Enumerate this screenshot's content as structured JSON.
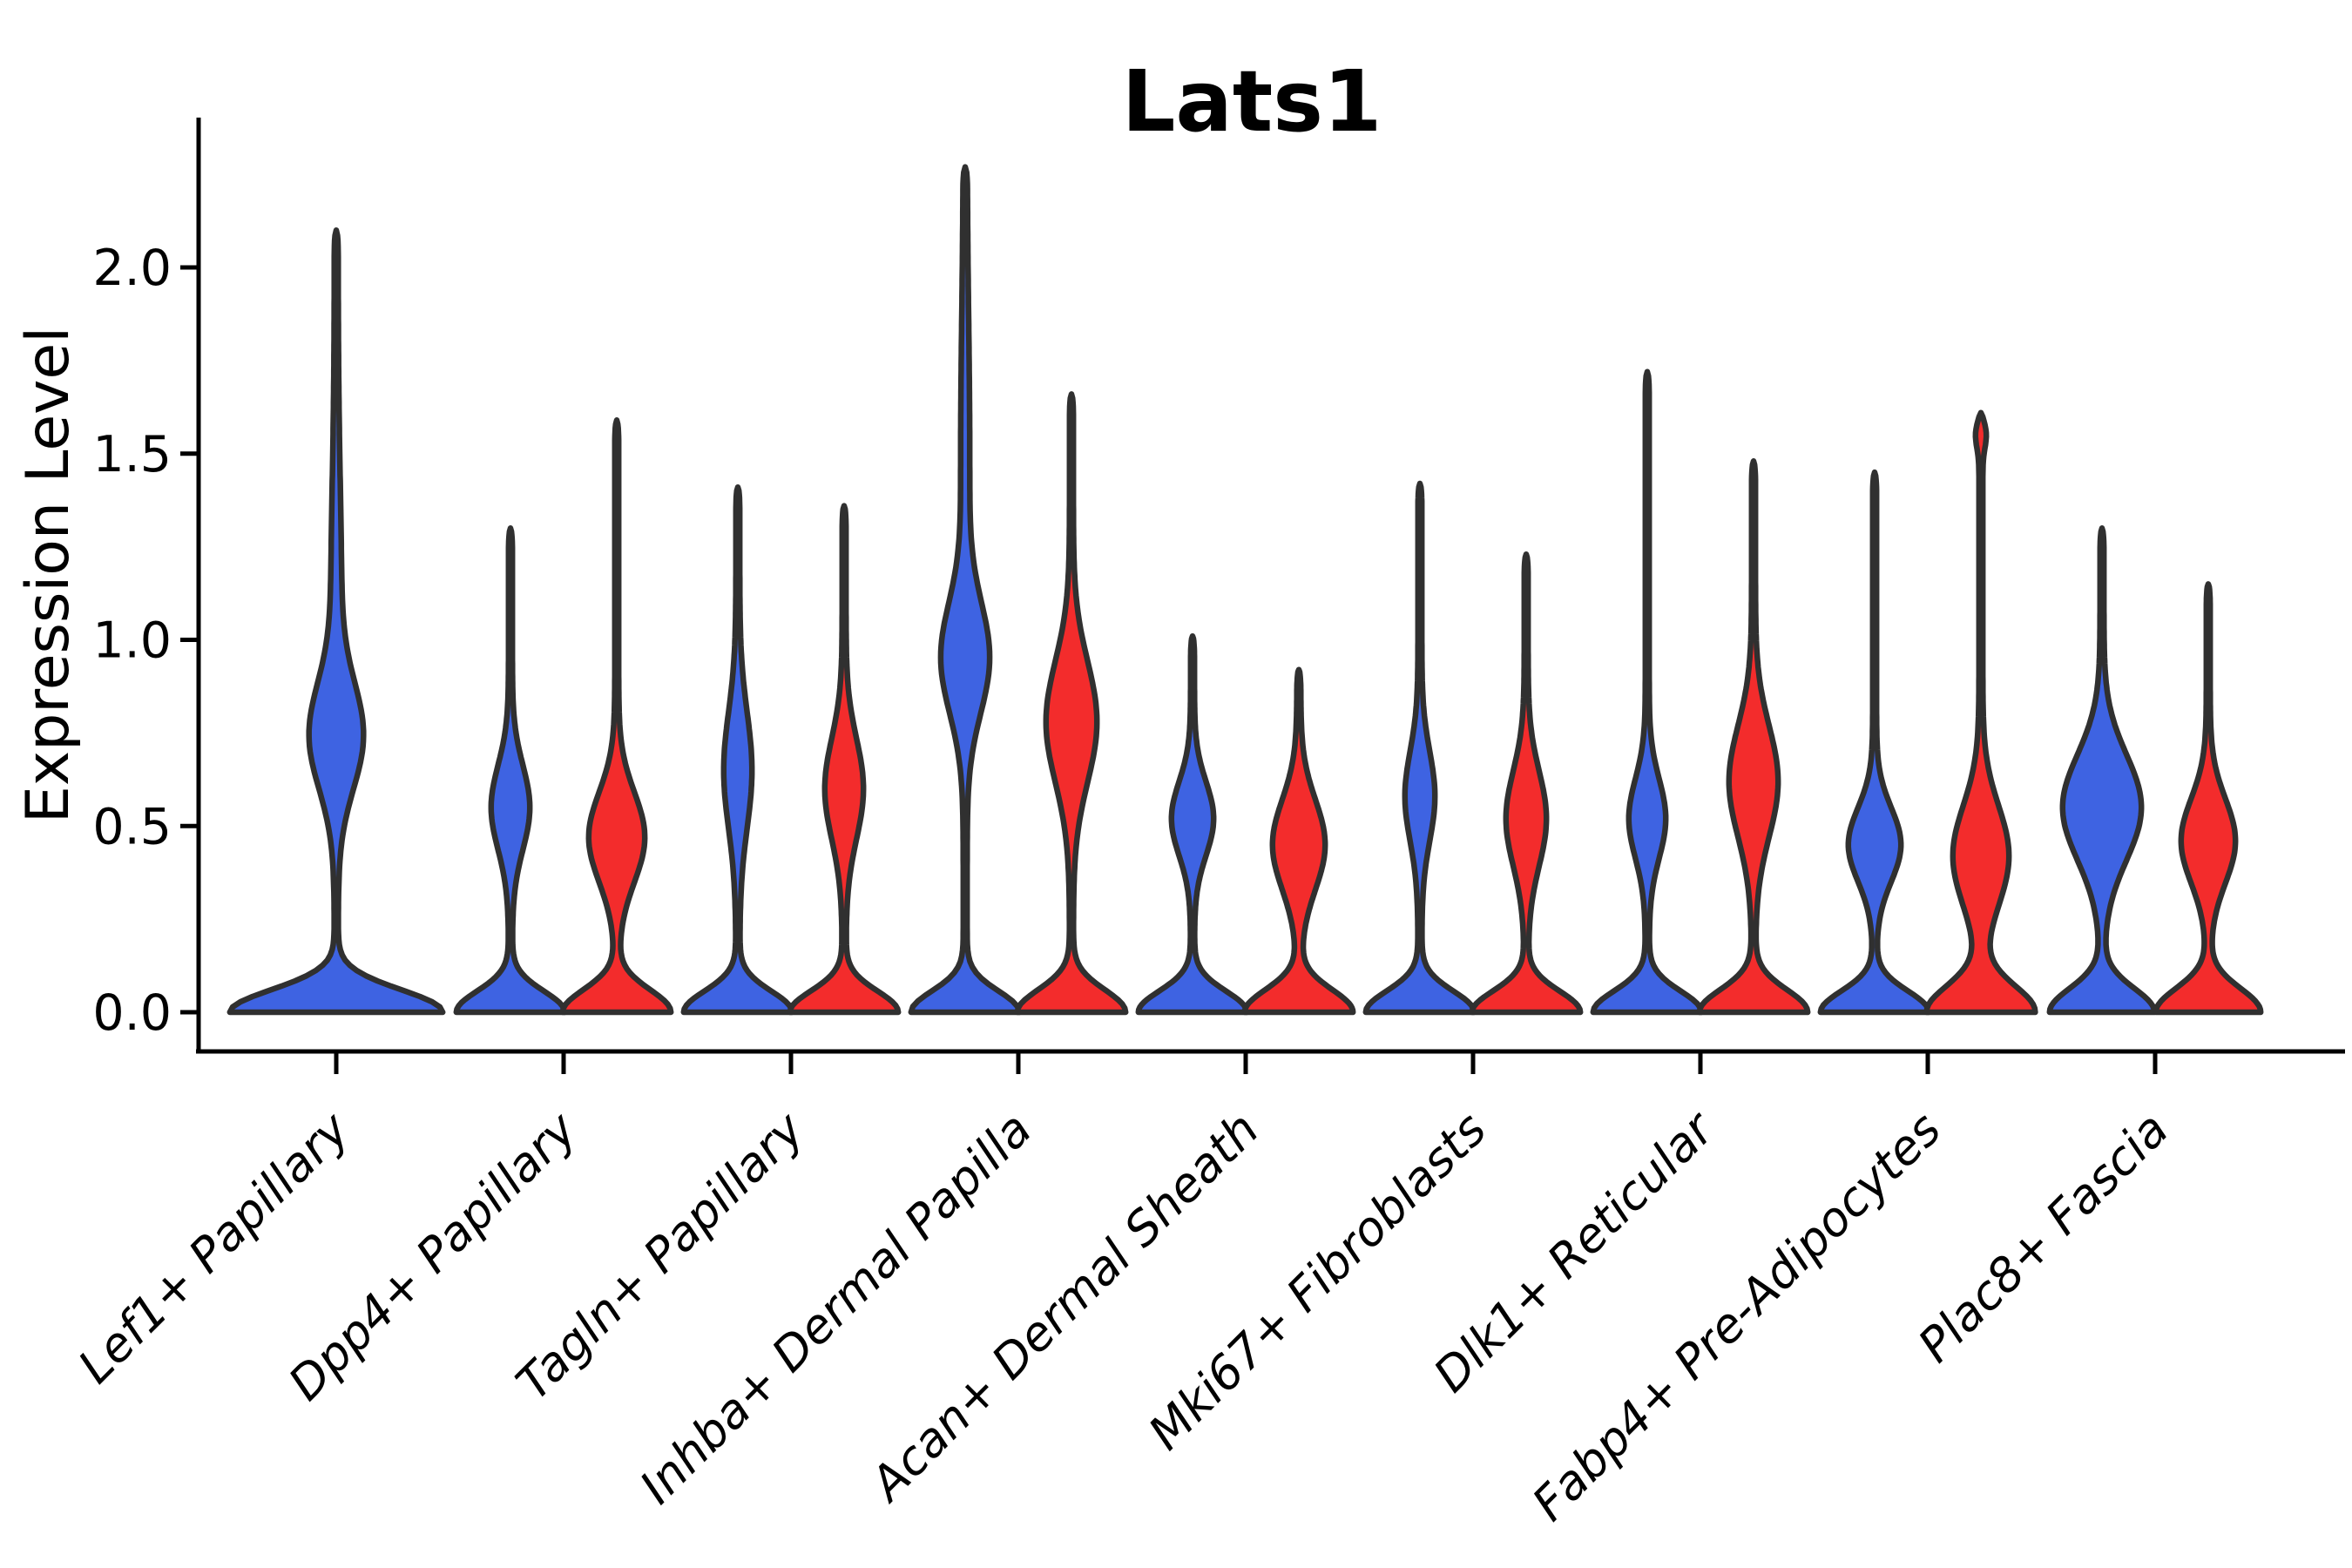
{
  "title": "Lats1",
  "axes": {
    "y_label": "Expression Level",
    "y_ticks": [
      "0.0",
      "0.5",
      "1.0",
      "1.5",
      "2.0"
    ],
    "y_tick_values": [
      0,
      0.5,
      1.0,
      1.5,
      2.0
    ]
  },
  "colors": {
    "blue": "#3E63E2",
    "red": "#F32C2C",
    "outline": "#303030",
    "axis": "#000000"
  },
  "chart_data": {
    "type": "violin",
    "title": "Lats1",
    "xlabel": "",
    "ylabel": "Expression Level",
    "ylim": [
      0,
      2.42
    ],
    "y_ticks": [
      0,
      0.5,
      1.0,
      1.5,
      2.0
    ],
    "grid": false,
    "legend": "none",
    "categories": [
      "Lef1+ Papillary",
      "Dpp4+ Papillary",
      "Tagln+ Papillary",
      "Inhba+ Dermal Papilla",
      "Acan+ Dermal Sheath",
      "Mki67+ Fibroblasts",
      "Dlk1+ Reticular",
      "Fabp4+ Pre-Adipocytes",
      "Plac8+ Fascia"
    ],
    "series": [
      {
        "name": "blue",
        "color": "#3E63E2"
      },
      {
        "name": "red",
        "color": "#F32C2C"
      }
    ],
    "violins": [
      {
        "category": "Lef1+ Papillary",
        "items": [
          {
            "series": "blue",
            "position": "center",
            "max_expression": 2.1,
            "components": [
              [
                120,
                0,
                0.085
              ],
              [
                27,
                0.74,
                0.2
              ],
              [
                4,
                1.1,
                0.45
              ]
            ]
          }
        ]
      },
      {
        "category": "Dpp4+ Papillary",
        "items": [
          {
            "series": "blue",
            "position": "left",
            "max_expression": 1.3,
            "components": [
              [
                60,
                0,
                0.08
              ],
              [
                20,
                0.55,
                0.16
              ]
            ]
          },
          {
            "series": "red",
            "position": "right",
            "max_expression": 1.59,
            "components": [
              [
                60,
                0,
                0.085
              ],
              [
                30,
                0.47,
                0.17
              ]
            ]
          }
        ]
      },
      {
        "category": "Tagln+ Papillary",
        "items": [
          {
            "series": "blue",
            "position": "left",
            "max_expression": 1.41,
            "components": [
              [
                60,
                0,
                0.08
              ],
              [
                14,
                0.65,
                0.22
              ]
            ]
          },
          {
            "series": "red",
            "position": "right",
            "max_expression": 1.36,
            "components": [
              [
                60,
                0,
                0.08
              ],
              [
                20,
                0.6,
                0.19
              ]
            ]
          }
        ]
      },
      {
        "category": "Inhba+ Dermal Papilla",
        "items": [
          {
            "series": "blue",
            "position": "left",
            "max_expression": 2.27,
            "components": [
              [
                60,
                0,
                0.08
              ],
              [
                25,
                0.95,
                0.21
              ],
              [
                3,
                1.5,
                0.5
              ]
            ]
          },
          {
            "series": "red",
            "position": "right",
            "max_expression": 1.66,
            "components": [
              [
                60,
                0,
                0.085
              ],
              [
                27,
                0.78,
                0.23
              ]
            ]
          }
        ]
      },
      {
        "category": "Acan+ Dermal Sheath",
        "items": [
          {
            "series": "blue",
            "position": "left",
            "max_expression": 1.01,
            "components": [
              [
                60,
                0,
                0.08
              ],
              [
                22,
                0.52,
                0.14
              ]
            ]
          },
          {
            "series": "red",
            "position": "right",
            "max_expression": 0.92,
            "components": [
              [
                60,
                0,
                0.085
              ],
              [
                28,
                0.45,
                0.17
              ]
            ]
          }
        ]
      },
      {
        "category": "Mki67+ Fibroblasts",
        "items": [
          {
            "series": "blue",
            "position": "left",
            "max_expression": 1.42,
            "components": [
              [
                60,
                0,
                0.08
              ],
              [
                15,
                0.58,
                0.17
              ]
            ]
          },
          {
            "series": "red",
            "position": "right",
            "max_expression": 1.23,
            "components": [
              [
                60,
                0,
                0.08
              ],
              [
                21,
                0.52,
                0.18
              ]
            ]
          }
        ]
      },
      {
        "category": "Dlk1+ Reticular",
        "items": [
          {
            "series": "blue",
            "position": "left",
            "max_expression": 1.72,
            "components": [
              [
                60,
                0,
                0.08
              ],
              [
                19,
                0.52,
                0.15
              ]
            ]
          },
          {
            "series": "red",
            "position": "right",
            "max_expression": 1.48,
            "components": [
              [
                60,
                0,
                0.085
              ],
              [
                26,
                0.62,
                0.21
              ]
            ]
          }
        ]
      },
      {
        "category": "Fabp4+ Pre-Adipocytes",
        "items": [
          {
            "series": "blue",
            "position": "left",
            "max_expression": 1.45,
            "components": [
              [
                60,
                0,
                0.08
              ],
              [
                28,
                0.45,
                0.14
              ]
            ]
          },
          {
            "series": "red",
            "position": "right",
            "max_expression": 1.61,
            "components": [
              [
                60,
                0,
                0.1
              ],
              [
                30,
                0.42,
                0.19
              ],
              [
                4,
                1.55,
                0.05
              ]
            ]
          }
        ]
      },
      {
        "category": "Plac8+ Fascia",
        "items": [
          {
            "series": "blue",
            "position": "left",
            "max_expression": 1.3,
            "components": [
              [
                58,
                0,
                0.09
              ],
              [
                43,
                0.55,
                0.2
              ]
            ]
          },
          {
            "series": "red",
            "position": "right",
            "max_expression": 1.15,
            "components": [
              [
                58,
                0,
                0.09
              ],
              [
                29,
                0.46,
                0.16
              ]
            ]
          }
        ]
      }
    ]
  }
}
